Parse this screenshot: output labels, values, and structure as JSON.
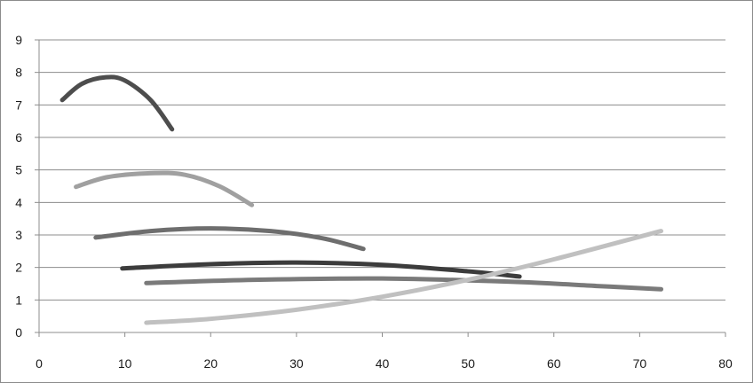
{
  "chart_data": {
    "type": "line",
    "title": "",
    "xlabel": "",
    "ylabel": "",
    "xlim": [
      0,
      80
    ],
    "ylim": [
      0,
      9
    ],
    "x_ticks": [
      0,
      10,
      20,
      30,
      40,
      50,
      60,
      70,
      80
    ],
    "y_ticks": [
      0,
      1,
      2,
      3,
      4,
      5,
      6,
      7,
      8,
      9
    ],
    "grid": "horizontal",
    "legend": "none",
    "series": [
      {
        "color": "#4d4d4d",
        "points": [
          [
            2.7,
            7.15
          ],
          [
            5,
            7.65
          ],
          [
            7.8,
            7.85
          ],
          [
            10,
            7.75
          ],
          [
            13,
            7.15
          ],
          [
            15.5,
            6.25
          ]
        ]
      },
      {
        "color": "#a0a0a0",
        "points": [
          [
            4.3,
            4.48
          ],
          [
            8,
            4.78
          ],
          [
            13,
            4.9
          ],
          [
            17,
            4.85
          ],
          [
            21,
            4.5
          ],
          [
            24.8,
            3.92
          ]
        ]
      },
      {
        "color": "#6e6e6e",
        "points": [
          [
            6.6,
            2.92
          ],
          [
            13,
            3.12
          ],
          [
            20,
            3.2
          ],
          [
            27,
            3.12
          ],
          [
            33,
            2.9
          ],
          [
            37.8,
            2.57
          ]
        ]
      },
      {
        "color": "#3c3c3c",
        "points": [
          [
            9.7,
            1.97
          ],
          [
            20,
            2.1
          ],
          [
            30,
            2.15
          ],
          [
            40,
            2.08
          ],
          [
            50,
            1.88
          ],
          [
            56,
            1.72
          ]
        ]
      },
      {
        "color": "#7a7a7a",
        "points": [
          [
            12.5,
            1.52
          ],
          [
            25,
            1.62
          ],
          [
            40,
            1.66
          ],
          [
            55,
            1.56
          ],
          [
            65,
            1.43
          ],
          [
            72.5,
            1.33
          ]
        ]
      },
      {
        "color": "#c0c0c0",
        "points": [
          [
            12.5,
            0.3
          ],
          [
            20,
            0.42
          ],
          [
            30,
            0.7
          ],
          [
            40,
            1.1
          ],
          [
            50,
            1.62
          ],
          [
            60,
            2.25
          ],
          [
            72.5,
            3.12
          ]
        ]
      }
    ]
  }
}
